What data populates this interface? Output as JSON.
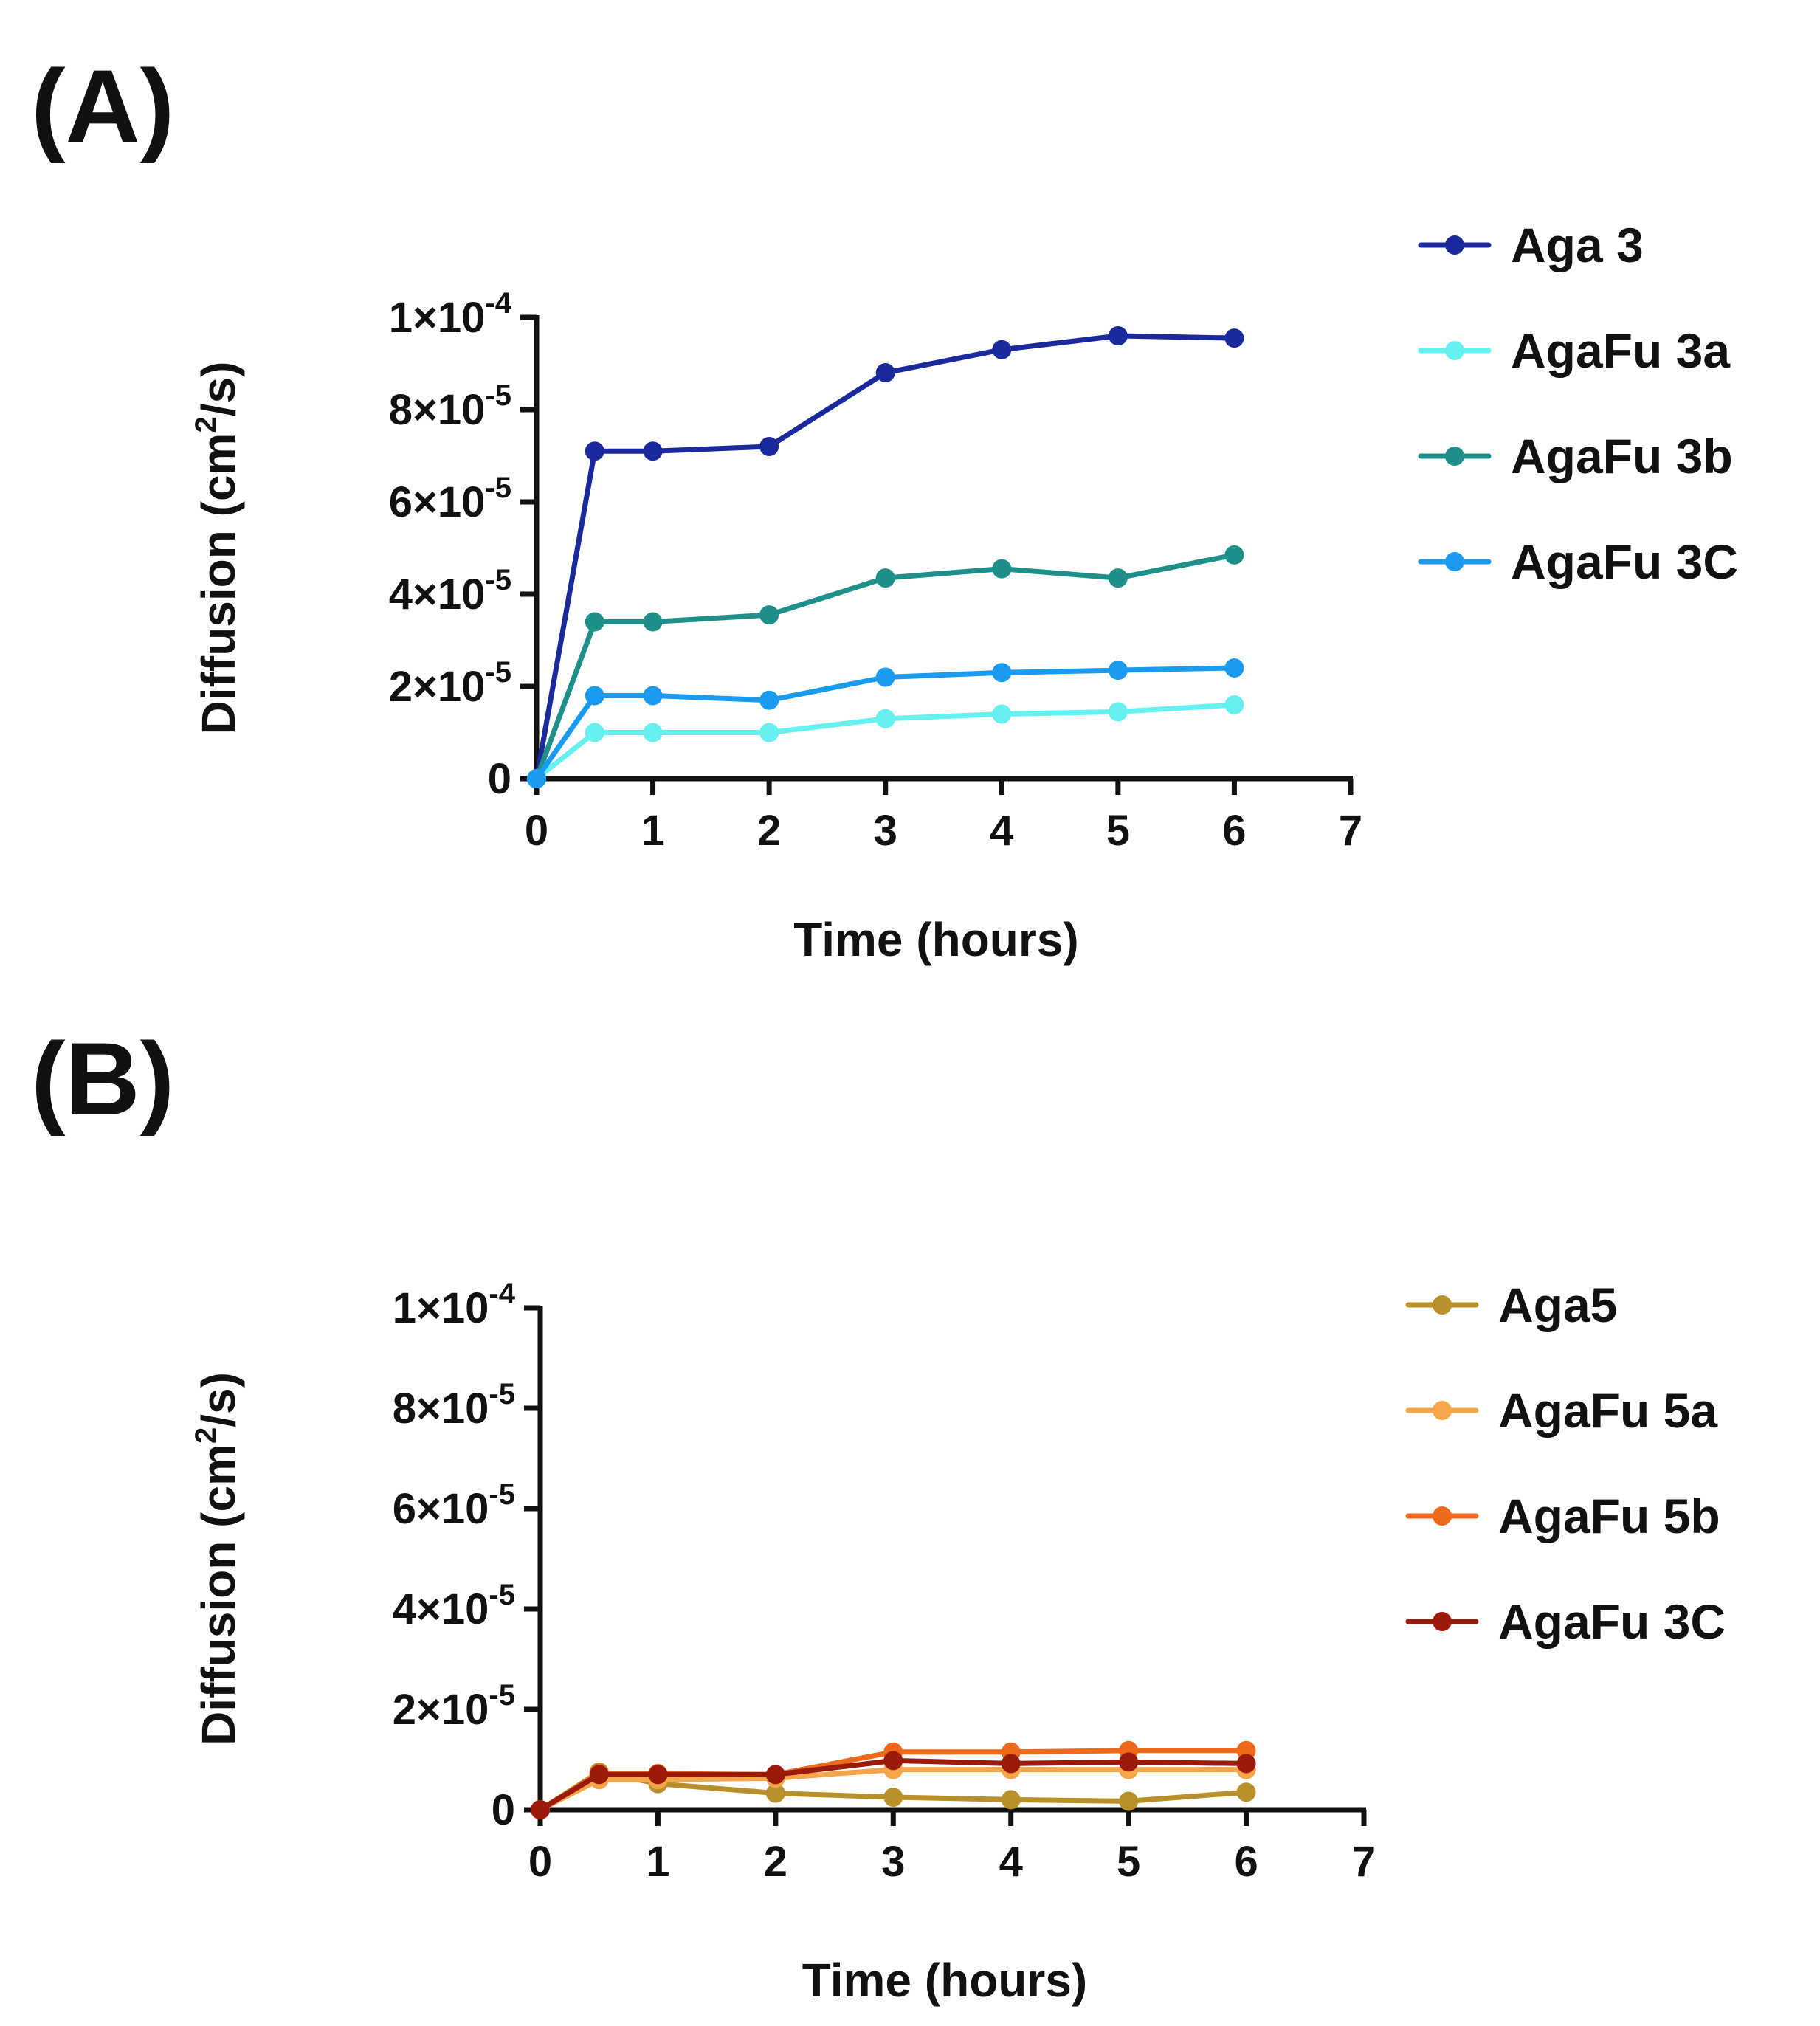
{
  "chart_data": [
    {
      "type": "line",
      "panel_label": "(A)",
      "title": "",
      "xlabel": "Time (hours)",
      "ylabel": {
        "prefix": "Diffusion (cm",
        "sup": "2",
        "suffix": "/s)"
      },
      "xlim": [
        0,
        7
      ],
      "ylim": [
        0,
        0.0001
      ],
      "x_ticks": [
        "0",
        "1",
        "2",
        "3",
        "4",
        "5",
        "6",
        "7"
      ],
      "y_ticks": [
        {
          "value": 0,
          "base": "0",
          "exp": ""
        },
        {
          "value": 2e-05,
          "base": "2×10",
          "exp": "-5"
        },
        {
          "value": 4e-05,
          "base": "4×10",
          "exp": "-5"
        },
        {
          "value": 6e-05,
          "base": "6×10",
          "exp": "-5"
        },
        {
          "value": 8e-05,
          "base": "8×10",
          "exp": "-5"
        },
        {
          "value": 0.0001,
          "base": "1×10",
          "exp": "-4"
        }
      ],
      "x": [
        0,
        0.5,
        1,
        2,
        3,
        4,
        5,
        6
      ],
      "legend_position": "right",
      "series": [
        {
          "name": "Aga 3",
          "color": "#1a2a9c",
          "values": [
            0,
            7.1e-05,
            7.1e-05,
            7.2e-05,
            8.8e-05,
            9.3e-05,
            9.6e-05,
            9.55e-05
          ]
        },
        {
          "name": "AgaFu 3a",
          "color": "#66f0f0",
          "values": [
            0,
            1e-05,
            1e-05,
            1e-05,
            1.3e-05,
            1.4e-05,
            1.45e-05,
            1.6e-05
          ]
        },
        {
          "name": "AgaFu 3b",
          "color": "#1f8f8a",
          "values": [
            0,
            3.4e-05,
            3.4e-05,
            3.55e-05,
            4.35e-05,
            4.55e-05,
            4.35e-05,
            4.85e-05
          ]
        },
        {
          "name": "AgaFu 3C",
          "color": "#1a9bf0",
          "values": [
            0,
            1.8e-05,
            1.8e-05,
            1.7e-05,
            2.2e-05,
            2.3e-05,
            2.35e-05,
            2.4e-05
          ]
        }
      ]
    },
    {
      "type": "line",
      "panel_label": "(B)",
      "title": "",
      "xlabel": "Time (hours)",
      "ylabel": {
        "prefix": "Diffusion (cm",
        "sup": "2",
        "suffix": "/s)"
      },
      "xlim": [
        0,
        7
      ],
      "ylim": [
        0,
        0.0001
      ],
      "x_ticks": [
        "0",
        "1",
        "2",
        "3",
        "4",
        "5",
        "6",
        "7"
      ],
      "y_ticks": [
        {
          "value": 0,
          "base": "0",
          "exp": ""
        },
        {
          "value": 2e-05,
          "base": "2×10",
          "exp": "-5"
        },
        {
          "value": 4e-05,
          "base": "4×10",
          "exp": "-5"
        },
        {
          "value": 6e-05,
          "base": "6×10",
          "exp": "-5"
        },
        {
          "value": 8e-05,
          "base": "8×10",
          "exp": "-5"
        },
        {
          "value": 0.0001,
          "base": "1×10",
          "exp": "-4"
        }
      ],
      "x": [
        0,
        0.5,
        1,
        2,
        3,
        4,
        5,
        6
      ],
      "legend_position": "right",
      "series": [
        {
          "name": "Aga5",
          "color": "#b8902a",
          "values": [
            0,
            7.5e-06,
            5.2e-06,
            3.3e-06,
            2.5e-06,
            2e-06,
            1.7e-06,
            3.5e-06
          ]
        },
        {
          "name": "AgaFu 5a",
          "color": "#f5a54a",
          "values": [
            0,
            6e-06,
            6e-06,
            6.3e-06,
            8e-06,
            8e-06,
            8e-06,
            8e-06
          ]
        },
        {
          "name": "AgaFu 5b",
          "color": "#ee6a1a",
          "values": [
            0,
            7.2e-06,
            7.2e-06,
            7e-06,
            1.15e-05,
            1.15e-05,
            1.18e-05,
            1.18e-05
          ]
        },
        {
          "name": "AgaFu 3C",
          "color": "#9c1a0c",
          "values": [
            0,
            7e-06,
            7e-06,
            7e-06,
            9.8e-06,
            9.2e-06,
            9.5e-06,
            9.2e-06
          ]
        }
      ]
    }
  ]
}
